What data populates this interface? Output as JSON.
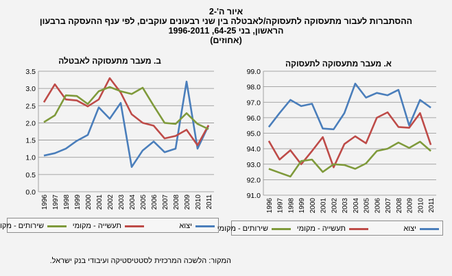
{
  "figure": {
    "label": "איור ה'-2",
    "title_line1": "ההסתברות לעבור מתעסוקה לתעסוקה/לאבטלה בין שני רבעונים עוקבים, לפי ענף ההעסקה ברבעון",
    "title_line2": "הראשון, בני 64-25, 1996-2011",
    "title_line3": "(אחוזים)",
    "source": "המקור: הלשכה המרכזית לסטטיסטיקה ועיבודי בנק ישראל."
  },
  "colors": {
    "export": "#4a7ebb",
    "industry": "#be4b48",
    "services": "#7f9a3b",
    "grid": "#8c8c8c"
  },
  "legend": {
    "export": "יצוא",
    "industry": "תעשייה - מקומי",
    "services": "שירותים - מקומי"
  },
  "chart_data": [
    {
      "type": "line",
      "title": "ב. מעבר מתעסוקה לאבטלה",
      "x": [
        "1996",
        "1997",
        "1998",
        "1999",
        "2000",
        "2001",
        "2002",
        "2003",
        "2004",
        "2005",
        "2006",
        "2007",
        "2008",
        "2009",
        "2010",
        "2011"
      ],
      "ylim": [
        0.0,
        3.5
      ],
      "yticks": [
        "0.0",
        "0.5",
        "1.0",
        "1.5",
        "2.0",
        "2.5",
        "3.0",
        "3.5"
      ],
      "grid": true,
      "series": [
        {
          "key": "export",
          "name": "יצוא",
          "values": [
            1.05,
            1.12,
            1.25,
            1.48,
            1.65,
            2.45,
            2.12,
            2.58,
            0.72,
            1.2,
            1.46,
            1.15,
            1.25,
            3.2,
            1.25,
            1.92
          ]
        },
        {
          "key": "industry",
          "name": "תעשייה - מקומי",
          "values": [
            2.6,
            3.12,
            2.68,
            2.65,
            2.48,
            2.68,
            3.3,
            2.88,
            2.25,
            2.0,
            1.92,
            1.55,
            1.62,
            1.8,
            1.35,
            1.93
          ]
        },
        {
          "key": "services",
          "name": "שירותים - מקומי",
          "values": [
            2.02,
            2.22,
            2.8,
            2.78,
            2.55,
            2.92,
            3.04,
            2.92,
            2.84,
            3.02,
            2.5,
            2.0,
            1.97,
            2.28,
            1.97,
            1.82
          ]
        }
      ]
    },
    {
      "type": "line",
      "title": "א. מעבר מתעסוקה לתעסוקה",
      "x": [
        "1996",
        "1997",
        "1998",
        "1999",
        "2000",
        "2001",
        "2002",
        "2003",
        "2004",
        "2005",
        "2006",
        "2007",
        "2008",
        "2009",
        "2010",
        "2011"
      ],
      "ylim": [
        91.0,
        99.0
      ],
      "yticks": [
        "91.0",
        "92.0",
        "93.0",
        "94.0",
        "95.0",
        "96.0",
        "97.0",
        "98.0",
        "99.0"
      ],
      "grid": true,
      "series": [
        {
          "key": "export",
          "name": "יצוא",
          "values": [
            95.4,
            96.3,
            97.15,
            96.75,
            96.9,
            95.3,
            95.25,
            96.3,
            98.2,
            97.3,
            97.6,
            97.45,
            97.8,
            95.5,
            97.15,
            96.65
          ]
        },
        {
          "key": "industry",
          "name": "תעשייה - מקומי",
          "values": [
            94.5,
            93.3,
            93.9,
            93.0,
            93.85,
            94.75,
            92.8,
            94.3,
            94.8,
            94.35,
            96.0,
            96.35,
            95.4,
            95.35,
            96.3,
            94.25
          ]
        },
        {
          "key": "services",
          "name": "שירותים - מקומי",
          "values": [
            92.7,
            92.45,
            92.2,
            93.2,
            93.3,
            92.5,
            93.0,
            92.95,
            92.7,
            93.05,
            93.85,
            94.0,
            94.4,
            94.05,
            94.45,
            93.85
          ]
        }
      ]
    }
  ]
}
